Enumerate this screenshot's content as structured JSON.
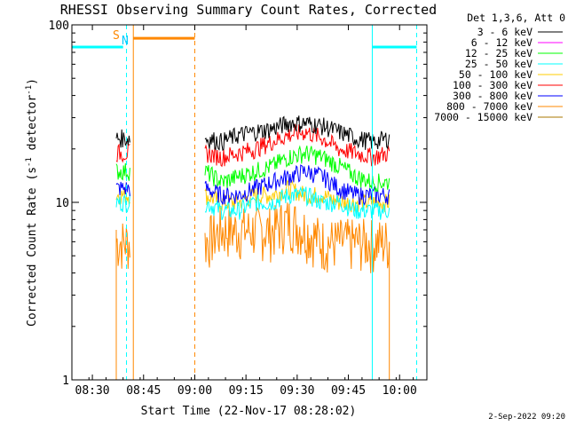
{
  "title": "RHESSI Observing Summary Count Rates, Corrected",
  "xlabel": "Start Time (22-Nov-17 08:28:02)",
  "ylabel_main": "Corrected Count Rate (s",
  "ylabel_sup1": "-1",
  "ylabel_mid": " detector",
  "ylabel_sup2": "-1",
  "ylabel_end": ")",
  "timestamp": "2-Sep-2022 09:20",
  "legend_header": "Det 1,3,6, Att 0",
  "flag_s": "S",
  "flag_n": "N",
  "chart_data": {
    "type": "line",
    "x_axis": {
      "start": "08:24",
      "end": "10:08",
      "ticks": [
        "08:30",
        "08:45",
        "09:00",
        "09:15",
        "09:30",
        "09:45",
        "10:00"
      ]
    },
    "y_axis": {
      "scale": "log",
      "range": [
        1,
        100
      ],
      "ticks": [
        "1",
        "10",
        "100"
      ]
    },
    "segments": [
      {
        "start": "08:37",
        "end": "08:41"
      },
      {
        "start": "09:03",
        "end": "09:57"
      }
    ],
    "series": [
      {
        "name": "3 - 6 keV",
        "color": "#000000",
        "values": [
          23,
          22,
          24,
          25,
          26,
          28,
          28,
          27,
          25,
          23,
          22,
          23
        ]
      },
      {
        "name": "6 - 12 keV",
        "color": "#ff00ff",
        "values": [
          0,
          0,
          0,
          0,
          0,
          0,
          0,
          0,
          0,
          0,
          0,
          0
        ]
      },
      {
        "name": "12 - 25 keV",
        "color": "#00ff00",
        "values": [
          15,
          13,
          14,
          15,
          16,
          18,
          19,
          18,
          16,
          14,
          13,
          13
        ]
      },
      {
        "name": "25 - 50 keV",
        "color": "#00ffff",
        "values": [
          10,
          9,
          9,
          10,
          10,
          11,
          11,
          10,
          10,
          9,
          9,
          9
        ]
      },
      {
        "name": "50 - 100 keV",
        "color": "#ffcc00",
        "values": [
          11,
          10,
          10,
          11,
          11,
          12,
          11,
          11,
          10,
          10,
          10,
          10
        ]
      },
      {
        "name": "100 - 300 keV",
        "color": "#ff0000",
        "values": [
          19,
          18,
          19,
          20,
          22,
          24,
          25,
          23,
          20,
          19,
          18,
          19
        ]
      },
      {
        "name": "300 - 800 keV",
        "color": "#0000ff",
        "values": [
          12,
          11,
          11,
          12,
          13,
          14,
          15,
          14,
          12,
          11,
          11,
          11
        ]
      },
      {
        "name": "800 - 7000 keV",
        "color": "#ff8800",
        "values": [
          6,
          7,
          7,
          7,
          7,
          8,
          7,
          6,
          6,
          6,
          6,
          6
        ]
      },
      {
        "name": "7000 - 15000 keV",
        "color": "#aa7700",
        "values": [
          0,
          0,
          0,
          0,
          0,
          0,
          0,
          0,
          0,
          0,
          0,
          0
        ]
      }
    ],
    "attenuator_bars": [
      {
        "color": "#00ffff",
        "start": "08:24",
        "end": "08:39",
        "value": 75
      },
      {
        "color": "#ff8800",
        "start": "08:42",
        "end": "09:00",
        "value": 84
      },
      {
        "color": "#00ffff",
        "start": "09:52",
        "end": "10:05",
        "value": 75
      }
    ],
    "vertical_lines": [
      {
        "time": "08:24",
        "color": "#00ffff",
        "style": "solid"
      },
      {
        "time": "08:40",
        "color": "#00ffff",
        "style": "dashed"
      },
      {
        "time": "08:42",
        "color": "#ff8800",
        "style": "solid"
      },
      {
        "time": "09:00",
        "color": "#ff8800",
        "style": "dashed"
      },
      {
        "time": "09:52",
        "color": "#00ffff",
        "style": "solid"
      },
      {
        "time": "10:05",
        "color": "#00ffff",
        "style": "dashed"
      }
    ]
  }
}
